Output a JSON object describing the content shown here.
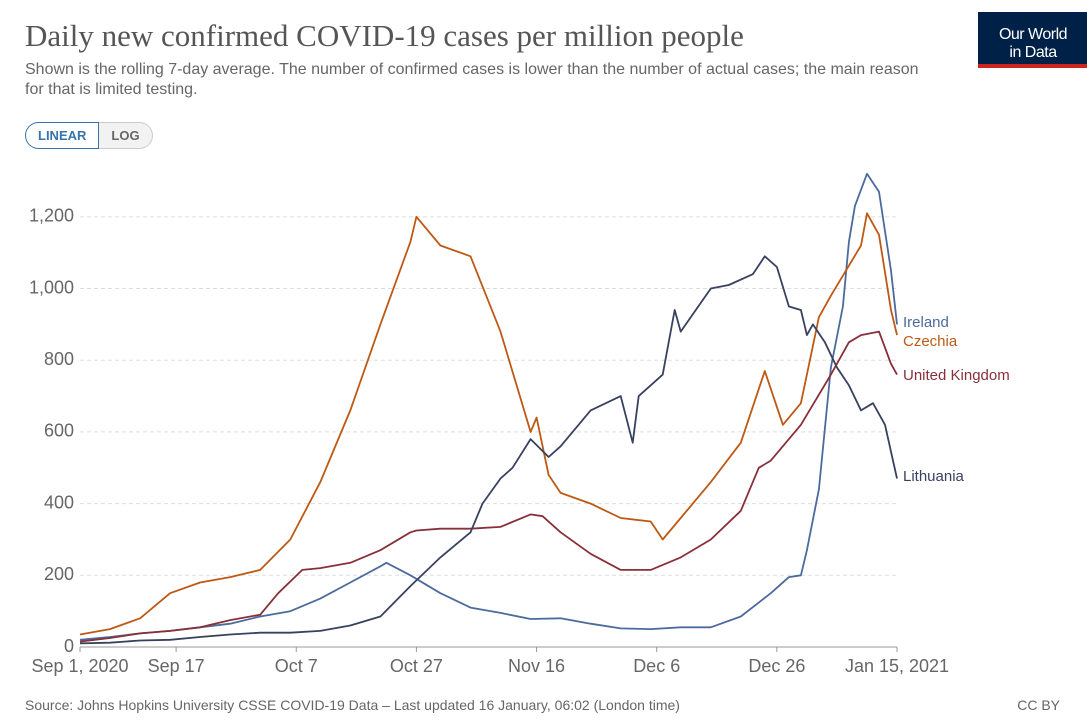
{
  "chart_data": {
    "type": "line",
    "title": "Daily new confirmed COVID-19 cases per million people",
    "subtitle": "Shown is the rolling 7-day average. The number of confirmed cases is lower than the number of actual cases; the main reason for that is limited testing.",
    "controls": [
      "LINEAR",
      "LOG"
    ],
    "logo": [
      "Our World",
      "in Data"
    ],
    "source": "Source: Johns Hopkins University CSSE COVID-19 Data – Last updated 16 January, 06:02 (London time)",
    "license": "CC BY",
    "xlim": [
      "2020-09-01",
      "2021-01-15"
    ],
    "xticks": [
      {
        "value": "2020-09-01",
        "label": "Sep 1, 2020"
      },
      {
        "value": "2020-09-17",
        "label": "Sep 17"
      },
      {
        "value": "2020-10-07",
        "label": "Oct 7"
      },
      {
        "value": "2020-10-27",
        "label": "Oct 27"
      },
      {
        "value": "2020-11-16",
        "label": "Nov 16"
      },
      {
        "value": "2020-12-06",
        "label": "Dec 6"
      },
      {
        "value": "2020-12-26",
        "label": "Dec 26"
      },
      {
        "value": "2021-01-15",
        "label": "Jan 15, 2021"
      }
    ],
    "ylim": [
      0,
      1300
    ],
    "yticks": [
      0,
      200,
      400,
      600,
      800,
      {
        "value": 1000,
        "label": "1,000"
      },
      {
        "value": 1200,
        "label": "1,200"
      }
    ],
    "grid": true,
    "series": [
      {
        "name": "Ireland",
        "color": "#4c6a9c",
        "x": [
          "2020-09-01",
          "2020-09-06",
          "2020-09-11",
          "2020-09-16",
          "2020-09-21",
          "2020-09-26",
          "2020-10-01",
          "2020-10-06",
          "2020-10-11",
          "2020-10-16",
          "2020-10-21",
          "2020-10-22",
          "2020-10-26",
          "2020-10-31",
          "2020-11-05",
          "2020-11-10",
          "2020-11-15",
          "2020-11-20",
          "2020-11-25",
          "2020-11-30",
          "2020-12-05",
          "2020-12-10",
          "2020-12-15",
          "2020-12-20",
          "2020-12-25",
          "2020-12-28",
          "2020-12-30",
          "2020-12-31",
          "2021-01-02",
          "2021-01-04",
          "2021-01-06",
          "2021-01-07",
          "2021-01-08",
          "2021-01-10",
          "2021-01-12",
          "2021-01-14",
          "2021-01-15"
        ],
        "values": [
          20,
          28,
          38,
          45,
          55,
          65,
          85,
          100,
          135,
          180,
          225,
          235,
          200,
          150,
          110,
          95,
          78,
          80,
          65,
          52,
          50,
          55,
          55,
          85,
          150,
          195,
          200,
          270,
          440,
          780,
          950,
          1130,
          1230,
          1320,
          1270,
          1050,
          900
        ]
      },
      {
        "name": "Czechia",
        "color": "#be5915",
        "x": [
          "2020-09-01",
          "2020-09-06",
          "2020-09-11",
          "2020-09-16",
          "2020-09-21",
          "2020-09-26",
          "2020-10-01",
          "2020-10-06",
          "2020-10-11",
          "2020-10-16",
          "2020-10-21",
          "2020-10-26",
          "2020-10-27",
          "2020-10-31",
          "2020-11-05",
          "2020-11-10",
          "2020-11-15",
          "2020-11-16",
          "2020-11-18",
          "2020-11-20",
          "2020-11-25",
          "2020-11-30",
          "2020-12-05",
          "2020-12-07",
          "2020-12-10",
          "2020-12-15",
          "2020-12-20",
          "2020-12-24",
          "2020-12-27",
          "2020-12-30",
          "2021-01-02",
          "2021-01-04",
          "2021-01-09",
          "2021-01-10",
          "2021-01-12",
          "2021-01-14",
          "2021-01-15"
        ],
        "values": [
          35,
          50,
          80,
          150,
          180,
          195,
          215,
          300,
          460,
          660,
          900,
          1130,
          1200,
          1120,
          1090,
          880,
          600,
          640,
          480,
          430,
          400,
          360,
          350,
          300,
          360,
          460,
          570,
          770,
          620,
          680,
          920,
          980,
          1120,
          1210,
          1150,
          940,
          870
        ]
      },
      {
        "name": "United Kingdom",
        "color": "#883039",
        "x": [
          "2020-09-01",
          "2020-09-06",
          "2020-09-11",
          "2020-09-16",
          "2020-09-21",
          "2020-09-26",
          "2020-10-01",
          "2020-10-04",
          "2020-10-08",
          "2020-10-11",
          "2020-10-16",
          "2020-10-21",
          "2020-10-26",
          "2020-10-27",
          "2020-10-31",
          "2020-11-05",
          "2020-11-10",
          "2020-11-15",
          "2020-11-17",
          "2020-11-20",
          "2020-11-25",
          "2020-11-30",
          "2020-12-05",
          "2020-12-10",
          "2020-12-15",
          "2020-12-20",
          "2020-12-23",
          "2020-12-25",
          "2020-12-30",
          "2021-01-04",
          "2021-01-07",
          "2021-01-09",
          "2021-01-12",
          "2021-01-14",
          "2021-01-15"
        ],
        "values": [
          15,
          25,
          38,
          45,
          55,
          75,
          90,
          150,
          215,
          220,
          235,
          270,
          320,
          325,
          330,
          330,
          335,
          370,
          365,
          320,
          260,
          215,
          215,
          250,
          300,
          380,
          500,
          520,
          620,
          760,
          850,
          870,
          880,
          790,
          760
        ]
      },
      {
        "name": "Lithuania",
        "color": "#38415f",
        "x": [
          "2020-09-01",
          "2020-09-06",
          "2020-09-11",
          "2020-09-16",
          "2020-09-21",
          "2020-09-26",
          "2020-10-01",
          "2020-10-06",
          "2020-10-11",
          "2020-10-16",
          "2020-10-21",
          "2020-10-26",
          "2020-10-31",
          "2020-11-05",
          "2020-11-07",
          "2020-11-10",
          "2020-11-12",
          "2020-11-15",
          "2020-11-18",
          "2020-11-20",
          "2020-11-25",
          "2020-11-30",
          "2020-12-02",
          "2020-12-03",
          "2020-12-07",
          "2020-12-09",
          "2020-12-10",
          "2020-12-15",
          "2020-12-18",
          "2020-12-22",
          "2020-12-24",
          "2020-12-26",
          "2020-12-28",
          "2020-12-30",
          "2020-12-31",
          "2021-01-01",
          "2021-01-03",
          "2021-01-05",
          "2021-01-07",
          "2021-01-09",
          "2021-01-11",
          "2021-01-13",
          "2021-01-15"
        ],
        "values": [
          10,
          12,
          18,
          20,
          28,
          35,
          40,
          40,
          45,
          60,
          85,
          170,
          250,
          320,
          400,
          470,
          500,
          580,
          530,
          560,
          660,
          700,
          570,
          700,
          760,
          940,
          880,
          1000,
          1010,
          1040,
          1090,
          1060,
          950,
          940,
          870,
          900,
          850,
          780,
          730,
          660,
          680,
          620,
          470
        ]
      }
    ]
  }
}
